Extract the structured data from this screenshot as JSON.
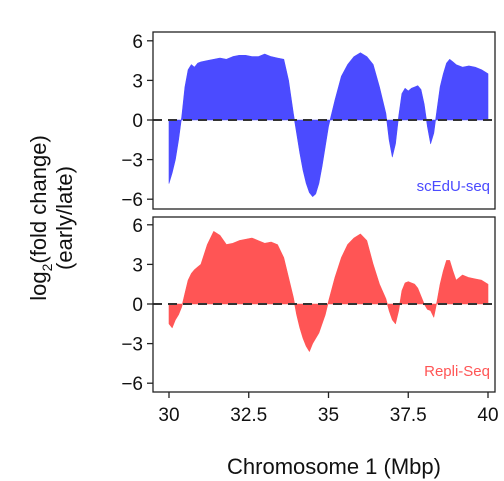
{
  "chart_data": {
    "type": "area",
    "xlabel": "Chromosome 1 (Mbp)",
    "ylabel_main": "log",
    "ylabel_sub": "2",
    "ylabel_rest": "(fold change)",
    "ylabel_line2": "(early/late)",
    "x_range": [
      30,
      40
    ],
    "x_ticks": [
      30,
      32.5,
      35,
      37.5,
      40
    ],
    "x_tick_labels": [
      "30",
      "32.5",
      "35",
      "37.5",
      "40"
    ],
    "panels": [
      {
        "label": "scEdU-seq",
        "color": "#4b4bff",
        "ylim": [
          -7,
          7
        ],
        "y_ticks": [
          6,
          3,
          0,
          -3,
          -6
        ],
        "y_tick_labels": [
          "6",
          "3",
          "0",
          "−3",
          "−6"
        ],
        "series": [
          {
            "x": [
              30.0,
              30.1,
              30.2,
              30.3,
              30.4,
              30.5,
              30.6,
              30.7,
              30.8,
              30.9,
              31.0,
              31.2,
              31.4,
              31.6,
              31.8,
              32.0,
              32.2,
              32.4,
              32.6,
              32.8,
              33.0,
              33.2,
              33.4,
              33.6,
              33.75,
              33.9,
              34.0,
              34.1,
              34.2,
              34.3,
              34.4,
              34.5,
              34.6,
              34.7,
              34.8,
              34.9,
              35.0,
              35.2,
              35.4,
              35.6,
              35.8,
              36.0,
              36.2,
              36.4,
              36.6,
              36.8,
              36.9,
              37.0,
              37.1,
              37.2,
              37.3,
              37.4,
              37.5,
              37.6,
              37.7,
              37.8,
              37.9,
              38.0,
              38.1,
              38.2,
              38.3,
              38.4,
              38.5,
              38.6,
              38.7,
              38.8,
              38.9,
              39.0,
              39.2,
              39.4,
              39.6,
              39.8,
              40.0
            ],
            "y": [
              -4.8,
              -4.0,
              -3.0,
              -1.5,
              0.3,
              2.5,
              3.8,
              4.2,
              4.0,
              4.3,
              4.4,
              4.5,
              4.6,
              4.7,
              4.6,
              4.8,
              4.9,
              4.9,
              4.8,
              4.8,
              5.0,
              4.8,
              4.7,
              4.6,
              3.0,
              0.5,
              -1.0,
              -2.5,
              -3.8,
              -4.8,
              -5.5,
              -5.8,
              -5.6,
              -4.8,
              -3.5,
              -2.0,
              -0.5,
              1.5,
              3.3,
              4.2,
              4.8,
              5.1,
              4.8,
              4.2,
              2.5,
              0.5,
              -1.5,
              -2.8,
              -1.8,
              0.3,
              2.0,
              2.4,
              2.2,
              2.4,
              2.5,
              2.6,
              2.3,
              1.2,
              -0.5,
              -1.8,
              -1.0,
              0.8,
              2.5,
              3.5,
              4.3,
              4.6,
              4.4,
              4.2,
              4.0,
              4.1,
              4.0,
              3.8,
              3.5
            ]
          }
        ]
      },
      {
        "label": "Repli-Seq",
        "color": "#ff5555",
        "ylim": [
          -7,
          7
        ],
        "y_ticks": [
          6,
          3,
          0,
          -3,
          -6
        ],
        "y_tick_labels": [
          "6",
          "3",
          "0",
          "−3",
          "−6"
        ],
        "series": [
          {
            "x": [
              30.0,
              30.1,
              30.2,
              30.3,
              30.4,
              30.5,
              30.6,
              30.7,
              30.8,
              30.9,
              31.0,
              31.2,
              31.4,
              31.6,
              31.8,
              32.0,
              32.2,
              32.4,
              32.6,
              32.8,
              33.0,
              33.2,
              33.4,
              33.6,
              33.75,
              33.9,
              34.0,
              34.1,
              34.2,
              34.3,
              34.4,
              34.5,
              34.6,
              34.7,
              34.8,
              34.9,
              35.0,
              35.2,
              35.4,
              35.6,
              35.8,
              36.0,
              36.2,
              36.4,
              36.6,
              36.8,
              36.9,
              37.0,
              37.1,
              37.2,
              37.3,
              37.4,
              37.5,
              37.6,
              37.7,
              37.8,
              37.9,
              38.0,
              38.1,
              38.2,
              38.3,
              38.4,
              38.5,
              38.6,
              38.7,
              38.8,
              38.9,
              39.0,
              39.2,
              39.4,
              39.6,
              39.8,
              40.0
            ],
            "y": [
              -1.5,
              -1.8,
              -1.2,
              -0.8,
              -0.2,
              0.8,
              1.8,
              2.3,
              2.6,
              2.8,
              3.0,
              4.5,
              5.5,
              5.2,
              4.5,
              4.6,
              4.8,
              4.9,
              5.0,
              4.8,
              4.6,
              4.7,
              4.5,
              3.5,
              2.0,
              0.5,
              -0.8,
              -1.8,
              -2.6,
              -3.2,
              -3.6,
              -3.0,
              -2.6,
              -2.2,
              -1.5,
              -0.8,
              0.2,
              2.0,
              3.5,
              4.5,
              5.0,
              5.3,
              4.8,
              3.0,
              1.5,
              0.4,
              -0.5,
              -1.2,
              -1.5,
              -0.5,
              1.0,
              1.6,
              1.7,
              1.6,
              1.5,
              1.2,
              0.6,
              0.0,
              -0.4,
              -0.5,
              -1.0,
              0.2,
              1.5,
              2.5,
              3.3,
              3.3,
              2.5,
              1.8,
              2.2,
              2.0,
              1.9,
              1.8,
              1.5
            ]
          }
        ]
      }
    ],
    "zero_line": {
      "style": "dashed",
      "color": "#333333"
    }
  }
}
